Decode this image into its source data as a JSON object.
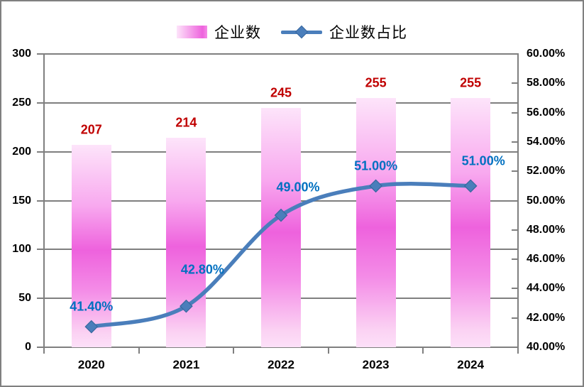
{
  "chart_data": {
    "type": "bar+line",
    "categories": [
      "2020",
      "2021",
      "2022",
      "2023",
      "2024"
    ],
    "series": [
      {
        "name": "企业数",
        "type": "bar",
        "axis": "left",
        "values": [
          207,
          214,
          245,
          255,
          255
        ],
        "data_labels": [
          "207",
          "214",
          "245",
          "255",
          "255"
        ]
      },
      {
        "name": "企业数占比",
        "type": "line",
        "axis": "right",
        "values": [
          41.4,
          42.8,
          49.0,
          51.0,
          51.0
        ],
        "data_labels": [
          "41.40%",
          "42.80%",
          "49.00%",
          "51.00%",
          "51.00%"
        ],
        "smooth": true,
        "marker": "diamond"
      }
    ],
    "left_axis": {
      "min": 0,
      "max": 300,
      "step": 50,
      "tick_labels": [
        "0",
        "50",
        "100",
        "150",
        "200",
        "250",
        "300"
      ]
    },
    "right_axis": {
      "min": 40,
      "max": 60,
      "step": 2,
      "tick_labels": [
        "40.00%",
        "42.00%",
        "44.00%",
        "46.00%",
        "48.00%",
        "50.00%",
        "52.00%",
        "54.00%",
        "56.00%",
        "58.00%",
        "60.00%"
      ]
    },
    "legend_position": "top-center",
    "grid": true,
    "title": "",
    "xlabel": "",
    "ylabel": ""
  },
  "colors": {
    "bar_gradient": [
      "#FDE4FA",
      "#F8A9EF",
      "#EE62DD",
      "#F48CE7",
      "#FBD2F3",
      "#FCE0F8"
    ],
    "line": "#4A7EBB",
    "marker_stroke": "#38689F",
    "bar_label": "#C00000",
    "line_label": "#0070C0",
    "grid": "#7F7F7F",
    "border": "#808080",
    "axis_text": "#000000"
  }
}
